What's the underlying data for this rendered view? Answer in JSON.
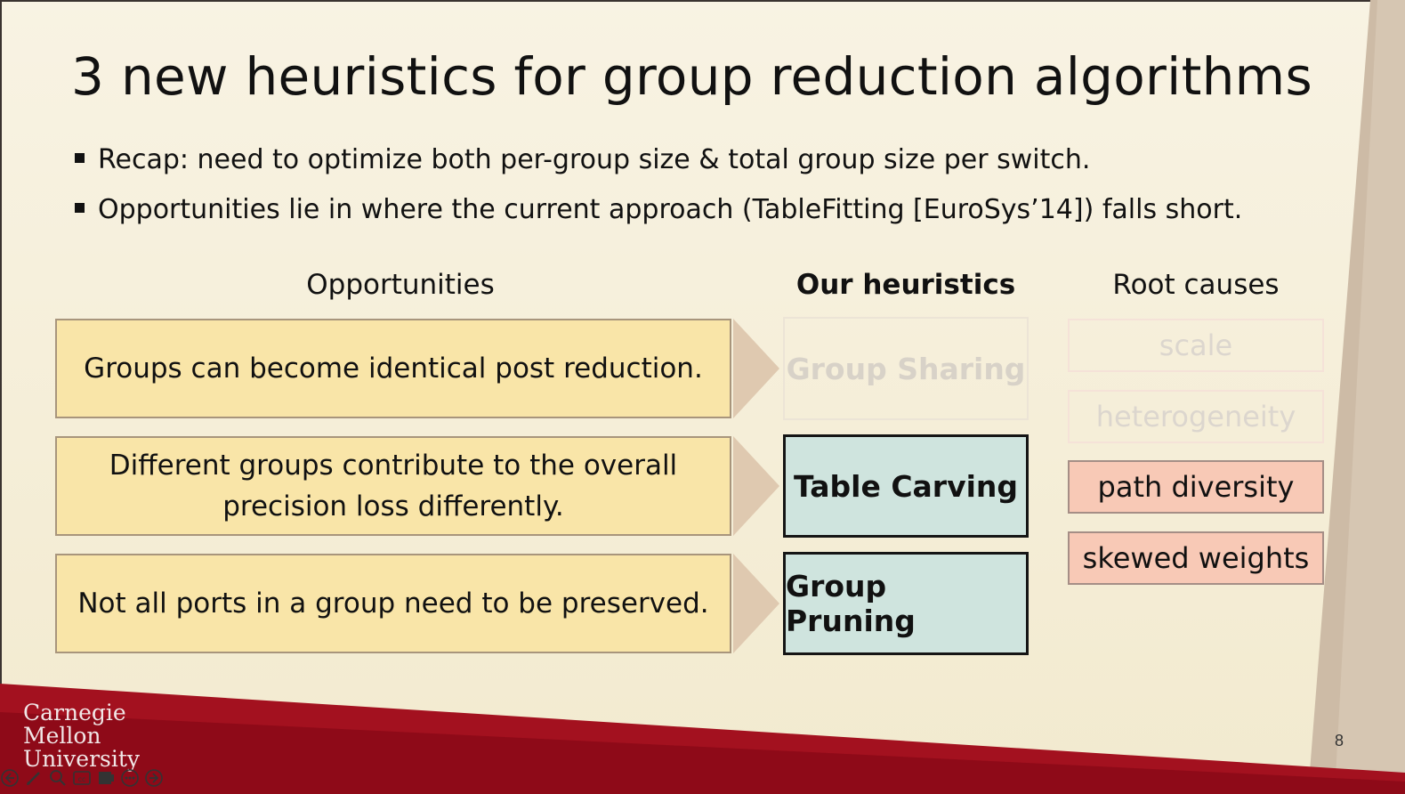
{
  "slide": {
    "title": "3 new heuristics for group reduction algorithms",
    "bullets": [
      "Recap: need to optimize both per-group size & total group size per switch.",
      "Opportunities lie in where the current approach (TableFitting [EuroSys’14]) falls short."
    ],
    "headers": {
      "opportunities": "Opportunities",
      "heuristics": "Our heuristics",
      "root_causes": "Root causes"
    },
    "opportunities": [
      {
        "line1": "Groups can become identical post reduction.",
        "line2": ""
      },
      {
        "line1": "Different groups contribute to the overall",
        "line2": "precision loss differently."
      },
      {
        "line1": "Not all ports in a group need to be preserved.",
        "line2": ""
      }
    ],
    "heuristics": [
      "Group Sharing",
      "Table Carving",
      "Group Pruning"
    ],
    "root_causes": [
      "scale",
      "heterogeneity",
      "path diversity",
      "skewed weights"
    ],
    "logo": {
      "line1": "Carnegie",
      "line2": "Mellon",
      "line3": "University"
    },
    "page_number": "8"
  },
  "colors": {
    "background": "#f6f0dc",
    "opportunity_fill": "#f9e5a8",
    "heuristic_fill": "#cfe4de",
    "root_cause_fill": "#f8c9b6",
    "brand_red": "#9c0a1a"
  },
  "player_controls": [
    "previous-icon",
    "pen-icon",
    "zoom-icon",
    "captions-icon",
    "screen-icon",
    "more-icon",
    "next-icon"
  ]
}
